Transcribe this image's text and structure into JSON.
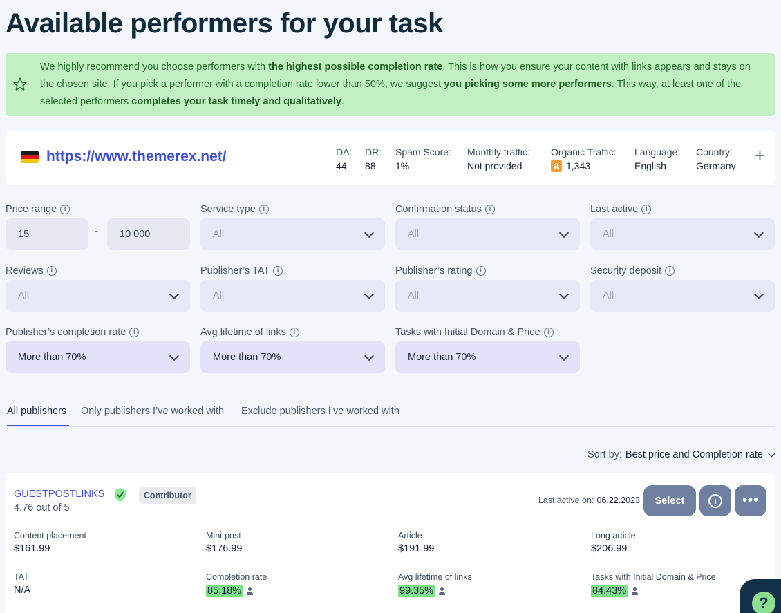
{
  "page": {
    "title": "Available performers for your task"
  },
  "banner": {
    "p1": "We highly recommend you choose performers with ",
    "b1": "the highest possible completion rate",
    "p2": ". This is how you ensure your content with links appears and stays on the chosen site. If you pick a performer with a completion rate lower than 50%, we suggest ",
    "b2": "you picking some more performers",
    "p3": ". This way, at least one of the selected performers ",
    "b3": "completes your task timely and qualitatively",
    "p4": "."
  },
  "site": {
    "url": "https://www.themerex.net/",
    "metrics": [
      {
        "label": "DA:",
        "value": "44"
      },
      {
        "label": "DR:",
        "value": "88"
      },
      {
        "label": "Spam Score:",
        "value": "1%"
      },
      {
        "label": "Monthly traffic:",
        "value": "Not provided"
      },
      {
        "label": "Organic Traffic:",
        "value": "1,343"
      },
      {
        "label": "Language:",
        "value": "English"
      },
      {
        "label": "Country:",
        "value": "Germany"
      }
    ],
    "plus": "+"
  },
  "filters": {
    "price_range": {
      "label": "Price range",
      "min": "15",
      "max": "10 000",
      "dash": "-"
    },
    "service_type": {
      "label": "Service type",
      "value": "All"
    },
    "confirmation_status": {
      "label": "Confirmation status",
      "value": "All"
    },
    "last_active": {
      "label": "Last active",
      "value": "All"
    },
    "reviews": {
      "label": "Reviews",
      "value": "All"
    },
    "publishers_tat": {
      "label": "Publisher’s TAT",
      "value": "All"
    },
    "publishers_rating": {
      "label": "Publisher’s rating",
      "value": "All"
    },
    "security_deposit": {
      "label": "Security deposit",
      "value": "All"
    },
    "completion_rate": {
      "label": "Publisher’s completion rate",
      "value": "More than 70%"
    },
    "avg_lifetime": {
      "label": "Avg lifetime of links",
      "value": "More than 70%"
    },
    "initial_domain_price": {
      "label": "Tasks with Initial Domain & Price",
      "value": "More than 70%"
    }
  },
  "tabs": [
    "All publishers",
    "Only publishers I’ve worked with",
    "Exclude publishers I’ve worked with"
  ],
  "sort": {
    "label": "Sort by:",
    "value": "Best price and Completion rate"
  },
  "publisher": {
    "name": "GUESTPOSTLINKS",
    "rating": "4.76 out of 5",
    "badge": "Contributor",
    "last_active_label": "Last active on:",
    "last_active_date": "06.22.2023",
    "select_label": "Select",
    "more_label": "•••",
    "prices": [
      {
        "label": "Content placement",
        "value": "$161.99"
      },
      {
        "label": "Mini-post",
        "value": "$176.99"
      },
      {
        "label": "Article",
        "value": "$191.99"
      },
      {
        "label": "Long article",
        "value": "$206.99"
      }
    ],
    "stats": [
      {
        "label": "TAT",
        "value": "N/A"
      },
      {
        "label": "Completion rate",
        "value": "85.18%"
      },
      {
        "label": "Avg lifetime of links",
        "value": "99.35%"
      },
      {
        "label": "Tasks with Initial Domain & Price",
        "value": "84.43%"
      }
    ]
  },
  "help": {
    "label": "?"
  },
  "colors": {
    "accent": "#3c4fd6",
    "banner_bg": "#c3f0c2",
    "button": "#6e7f9f",
    "highlight": "#7fe08a"
  }
}
